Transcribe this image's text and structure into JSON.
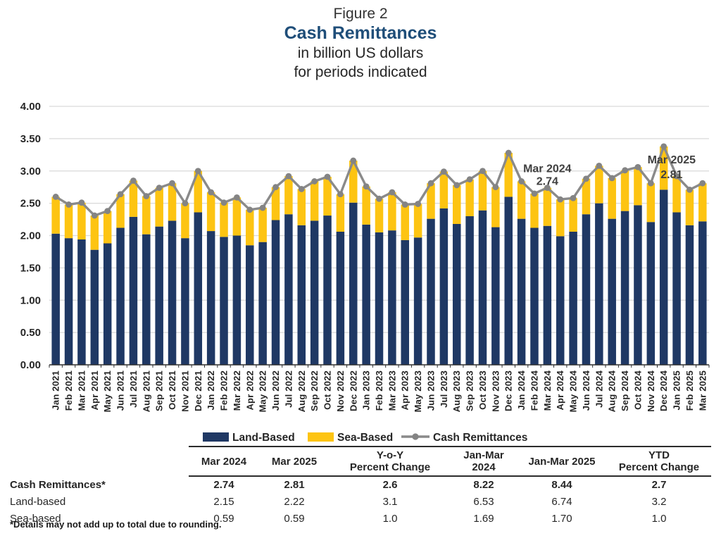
{
  "header": {
    "figure_label": "Figure 2",
    "title": "Cash Remittances",
    "subtitle1": "in billion US dollars",
    "subtitle2": "for periods indicated"
  },
  "chart_data": {
    "type": "bar",
    "stacked": true,
    "title": "Cash Remittances in billion US dollars",
    "xlabel": "",
    "ylabel": "",
    "ylim": [
      0,
      4.0
    ],
    "ytick_step": 0.5,
    "grid": true,
    "grid_color": "#d9d9d9",
    "axis_color": "#2f2f2f",
    "legend_position": "bottom",
    "categories": [
      "Jan 2021",
      "Feb 2021",
      "Mar 2021",
      "Apr 2021",
      "May 2021",
      "Jun 2021",
      "Jul 2021",
      "Aug 2021",
      "Sep 2021",
      "Oct 2021",
      "Nov 2021",
      "Dec 2021",
      "Jan 2022",
      "Feb 2022",
      "Mar 2022",
      "Apr 2022",
      "May 2022",
      "Jun 2022",
      "Jul 2022",
      "Aug 2022",
      "Sep 2022",
      "Oct 2022",
      "Nov 2022",
      "Dec 2022",
      "Jan 2023",
      "Feb 2023",
      "Mar 2023",
      "Apr 2023",
      "May 2023",
      "Jun 2023",
      "Jul 2023",
      "Aug 2023",
      "Sep 2023",
      "Oct 2023",
      "Nov 2023",
      "Dec 2023",
      "Jan 2024",
      "Feb 2024",
      "Mar 2024",
      "Apr 2024",
      "May 2024",
      "Jun 2024",
      "Jul 2024",
      "Aug 2024",
      "Sep 2024",
      "Oct 2024",
      "Nov 2024",
      "Dec 2024",
      "Jan 2025",
      "Feb 2025",
      "Mar 2025"
    ],
    "series": [
      {
        "name": "Land-Based",
        "type": "bar",
        "color": "#1f3864",
        "values": [
          2.03,
          1.96,
          1.94,
          1.78,
          1.88,
          2.12,
          2.29,
          2.02,
          2.14,
          2.23,
          1.96,
          2.36,
          2.07,
          1.98,
          2.0,
          1.85,
          1.9,
          2.24,
          2.33,
          2.16,
          2.23,
          2.31,
          2.06,
          2.51,
          2.17,
          2.05,
          2.08,
          1.93,
          1.97,
          2.26,
          2.42,
          2.18,
          2.3,
          2.39,
          2.13,
          2.6,
          2.26,
          2.12,
          2.15,
          1.99,
          2.06,
          2.33,
          2.5,
          2.26,
          2.38,
          2.47,
          2.21,
          2.71,
          2.36,
          2.16,
          2.22
        ]
      },
      {
        "name": "Sea-Based",
        "type": "bar",
        "color": "#fdc412",
        "values": [
          0.57,
          0.52,
          0.57,
          0.53,
          0.5,
          0.52,
          0.56,
          0.59,
          0.6,
          0.58,
          0.54,
          0.64,
          0.6,
          0.53,
          0.59,
          0.55,
          0.53,
          0.51,
          0.59,
          0.56,
          0.61,
          0.6,
          0.58,
          0.65,
          0.59,
          0.52,
          0.59,
          0.55,
          0.52,
          0.55,
          0.57,
          0.6,
          0.57,
          0.61,
          0.62,
          0.68,
          0.58,
          0.53,
          0.59,
          0.57,
          0.52,
          0.55,
          0.58,
          0.63,
          0.63,
          0.59,
          0.6,
          0.67,
          0.56,
          0.55,
          0.59
        ]
      },
      {
        "name": "Cash Remittances",
        "type": "line",
        "color": "#8a8a8a",
        "values": [
          2.6,
          2.48,
          2.51,
          2.31,
          2.38,
          2.64,
          2.85,
          2.61,
          2.74,
          2.81,
          2.5,
          3.0,
          2.67,
          2.51,
          2.59,
          2.4,
          2.43,
          2.75,
          2.92,
          2.72,
          2.84,
          2.91,
          2.64,
          3.16,
          2.76,
          2.57,
          2.67,
          2.48,
          2.49,
          2.81,
          2.99,
          2.78,
          2.87,
          3.0,
          2.75,
          3.28,
          2.84,
          2.65,
          2.74,
          2.56,
          2.58,
          2.88,
          3.08,
          2.89,
          3.01,
          3.06,
          2.81,
          3.38,
          2.92,
          2.71,
          2.81
        ]
      }
    ],
    "annotations": [
      {
        "index": 38,
        "lines": [
          "Mar 2024",
          "2.74"
        ],
        "dx": 0,
        "dy1": -22,
        "dy2": -4
      },
      {
        "index": 50,
        "lines": [
          "Mar 2025",
          "2.81"
        ],
        "dx": -44,
        "dy1": -28,
        "dy2": -7
      }
    ]
  },
  "legend": {
    "items": [
      {
        "label": "Land-Based",
        "swatch": "rect",
        "color": "#1f3864",
        "x": 288
      },
      {
        "label": "Sea-Based",
        "swatch": "rect",
        "color": "#fdc412",
        "x": 437
      },
      {
        "label": "Cash Remittances",
        "swatch": "line",
        "color": "#8a8a8a",
        "x": 570
      }
    ]
  },
  "table": {
    "columns": [
      [
        "Mar 2024"
      ],
      [
        "Mar 2025"
      ],
      [
        "Y-o-Y",
        "Percent Change"
      ],
      [
        "Jan-Mar 2024"
      ],
      [
        "Jan-Mar 2025"
      ],
      [
        "YTD",
        "Percent Change"
      ]
    ],
    "rows": [
      {
        "label": "Cash Remittances*",
        "bold": true,
        "values": [
          "2.74",
          "2.81",
          "2.6",
          "8.22",
          "8.44",
          "2.7"
        ]
      },
      {
        "label": "Land-based",
        "bold": false,
        "values": [
          "2.15",
          "2.22",
          "3.1",
          "6.53",
          "6.74",
          "3.2"
        ]
      },
      {
        "label": "Sea-based",
        "bold": false,
        "values": [
          "0.59",
          "0.59",
          "1.0",
          "1.69",
          "1.70",
          "1.0"
        ]
      }
    ],
    "footnote": "*Details may not add up to total due to rounding."
  }
}
